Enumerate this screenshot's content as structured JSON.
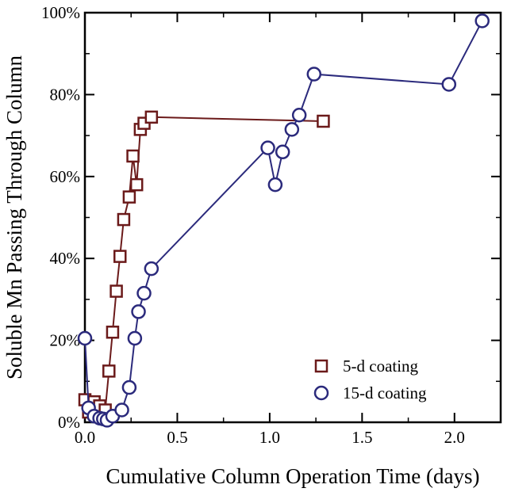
{
  "chart_data": {
    "type": "scatter",
    "xlabel": "Cumulative Column Operation Time (days)",
    "ylabel": "Soluble Mn Passing Through Column",
    "xlim": [
      0,
      2.25
    ],
    "ylim": [
      0,
      100
    ],
    "x_ticks": [
      0.0,
      0.5,
      1.0,
      1.5,
      2.0
    ],
    "x_tick_labels": [
      "0.0",
      "0.5",
      "1.0",
      "1.5",
      "2.0"
    ],
    "y_ticks": [
      0,
      20,
      40,
      60,
      80,
      100
    ],
    "y_tick_labels": [
      "0%",
      "20%",
      "40%",
      "60%",
      "80%",
      "100%"
    ],
    "grid": false,
    "legend_position": "bottom-right",
    "series": [
      {
        "name": "5-d coating",
        "marker": "square",
        "color": "#6b1a1a",
        "x": [
          0.0,
          0.02,
          0.05,
          0.08,
          0.11,
          0.13,
          0.15,
          0.17,
          0.19,
          0.21,
          0.24,
          0.26,
          0.28,
          0.3,
          0.32,
          0.36,
          1.29
        ],
        "y": [
          5.5,
          2.5,
          5.0,
          4.0,
          3.0,
          12.5,
          22.0,
          32.0,
          40.5,
          49.5,
          55.0,
          65.0,
          58.0,
          71.5,
          73.0,
          74.5,
          73.5
        ]
      },
      {
        "name": "15-d coating",
        "marker": "circle",
        "color": "#2b2a7c",
        "x": [
          0.0,
          0.02,
          0.05,
          0.08,
          0.1,
          0.12,
          0.15,
          0.2,
          0.24,
          0.27,
          0.29,
          0.32,
          0.36,
          0.99,
          1.03,
          1.07,
          1.12,
          1.16,
          1.24,
          1.97,
          2.15
        ],
        "y": [
          20.5,
          3.5,
          1.5,
          1.0,
          0.8,
          0.5,
          1.5,
          3.0,
          8.5,
          20.5,
          27.0,
          31.5,
          37.5,
          67.0,
          58.0,
          66.0,
          71.5,
          75.0,
          85.0,
          82.5,
          98.0
        ]
      }
    ]
  }
}
